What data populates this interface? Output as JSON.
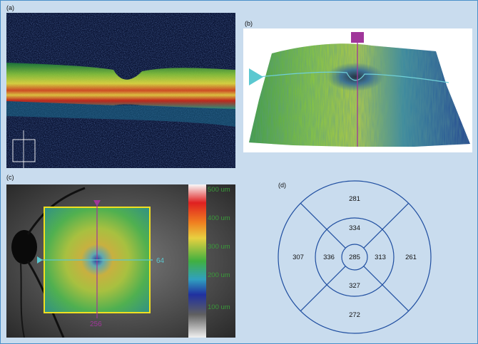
{
  "panel_labels": {
    "a": "(a)",
    "b": "(b)",
    "c": "(c)",
    "d": "(d)"
  },
  "color_scale": {
    "labels": [
      "500 um",
      "400 um",
      "300 um",
      "200 um",
      "100 um"
    ]
  },
  "map": {
    "horizontal_readout": "64",
    "vertical_readout": "256"
  },
  "etdrs": {
    "center": "285",
    "inner": {
      "superior": "334",
      "temporal": "336",
      "nasal": "313",
      "inferior": "327"
    },
    "outer": {
      "superior": "281",
      "temporal": "307",
      "nasal": "261",
      "inferior": "272"
    }
  },
  "colors": {
    "magenta": "#a0369a",
    "cyan": "#5bc8d0",
    "yellow_box": "#f0e020",
    "ring": "#1f4ea0",
    "background": "#c9dcee"
  }
}
